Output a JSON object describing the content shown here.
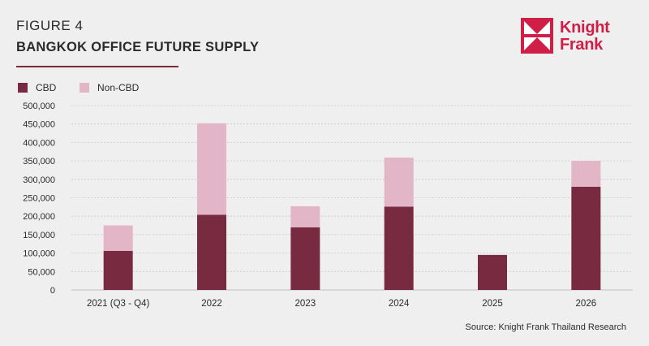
{
  "header": {
    "figure_label": "FIGURE 4",
    "title": "BANGKOK OFFICE FUTURE SUPPLY",
    "rule_color": "#7a2c3e"
  },
  "logo": {
    "line1": "Knight",
    "line2": "Frank",
    "color": "#cf1f46"
  },
  "legend": [
    {
      "label": "CBD",
      "color": "#782a40"
    },
    {
      "label": "Non-CBD",
      "color": "#e2b5c7"
    }
  ],
  "source": "Source: Knight Frank Thailand Research",
  "chart_data": {
    "type": "bar",
    "stacked": true,
    "categories": [
      "2021 (Q3 - Q4)",
      "2022",
      "2023",
      "2024",
      "2025",
      "2026"
    ],
    "series": [
      {
        "name": "CBD",
        "color": "#782a40",
        "values": [
          106000,
          204000,
          170000,
          226000,
          95000,
          280000
        ]
      },
      {
        "name": "Non-CBD",
        "color": "#e2b5c7",
        "values": [
          69000,
          248000,
          57000,
          133000,
          0,
          70000
        ]
      }
    ],
    "ylim": [
      0,
      500000
    ],
    "yticks": [
      "0",
      "50,000",
      "100,000",
      "150,000",
      "200,000",
      "250,000",
      "300,000",
      "350,000",
      "400,000",
      "450,000",
      "500,000"
    ],
    "grid": true,
    "legend_position": "top-left"
  }
}
